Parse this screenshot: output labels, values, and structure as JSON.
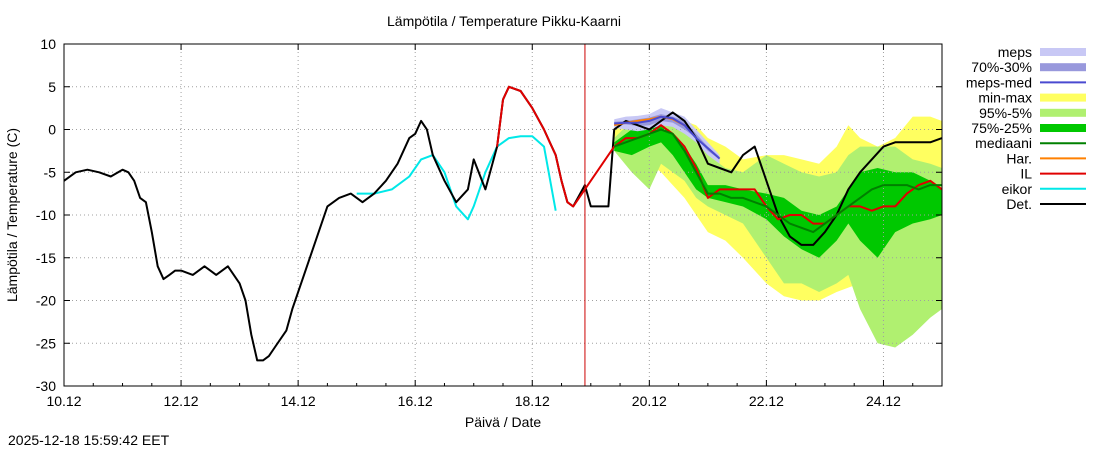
{
  "chart_data": {
    "type": "line",
    "title": "Lämpötila / Temperature   Pikku-Kaarni",
    "xlabel": "Päivä / Date",
    "ylabel": "Lämpötila / Temperature (C)",
    "xlim": [
      0,
      15
    ],
    "ylim": [
      -30,
      10
    ],
    "grid": true,
    "legend_position": "right",
    "now_marker_x": 8.9,
    "x_tick_labels": [
      {
        "x": 0,
        "label": "10.12"
      },
      {
        "x": 2,
        "label": "12.12"
      },
      {
        "x": 4,
        "label": "14.12"
      },
      {
        "x": 6,
        "label": "16.12"
      },
      {
        "x": 8,
        "label": "18.12"
      },
      {
        "x": 10,
        "label": "20.12"
      },
      {
        "x": 12,
        "label": "22.12"
      },
      {
        "x": 14,
        "label": "24.12"
      }
    ],
    "y_ticks": [
      -30,
      -25,
      -20,
      -15,
      -10,
      -5,
      0,
      5,
      10
    ],
    "legend": [
      {
        "label": "meps",
        "kind": "box",
        "color": "#c8c8f5"
      },
      {
        "label": "70%-30%",
        "kind": "box",
        "color": "#9898dc"
      },
      {
        "label": "meps-med",
        "kind": "line",
        "color": "#4a4ad0"
      },
      {
        "label": "min-max",
        "kind": "box",
        "color": "#ffff60"
      },
      {
        "label": "95%-5%",
        "kind": "box",
        "color": "#b0f070"
      },
      {
        "label": "75%-25%",
        "kind": "box",
        "color": "#00c800"
      },
      {
        "label": "mediaani",
        "kind": "line",
        "color": "#008000"
      },
      {
        "label": "Har.",
        "kind": "line",
        "color": "#ff8000"
      },
      {
        "label": "IL",
        "kind": "line",
        "color": "#e00000"
      },
      {
        "label": "eikor",
        "kind": "line",
        "color": "#00e8e8"
      },
      {
        "label": "Det.",
        "kind": "line",
        "color": "#000000"
      }
    ],
    "bands": [
      {
        "name": "min-max",
        "color": "#ffff60",
        "x": [
          9.4,
          9.7,
          10.0,
          10.2,
          10.4,
          10.6,
          10.8,
          11.0,
          11.3,
          11.6,
          12.0,
          12.3,
          12.6,
          12.9,
          13.2,
          13.4,
          13.6,
          13.9,
          14.2,
          14.5,
          14.8,
          15.0
        ],
        "low": [
          -2.0,
          -3.0,
          -4.0,
          -5.0,
          -6.5,
          -8.0,
          -10.0,
          -12.0,
          -13.0,
          -15.0,
          -18.0,
          -19.5,
          -20.0,
          -20.0,
          -19.0,
          -18.5,
          -18.0,
          -20.0,
          -22.0,
          -23.0,
          -22.0,
          -20.0
        ],
        "high": [
          0.0,
          1.5,
          1.5,
          2.0,
          1.5,
          1.0,
          0.5,
          -1.0,
          -2.0,
          -3.5,
          -3.0,
          -3.0,
          -3.5,
          -4.0,
          -2.0,
          0.5,
          -1.0,
          -2.0,
          -1.0,
          1.5,
          1.5,
          1.0
        ]
      },
      {
        "name": "95%-5%",
        "color": "#b0f070",
        "x": [
          9.4,
          9.7,
          10.0,
          10.2,
          10.4,
          10.6,
          10.8,
          11.0,
          11.3,
          11.6,
          12.0,
          12.3,
          12.6,
          12.9,
          13.2,
          13.4,
          13.6,
          13.9,
          14.2,
          14.5,
          14.8,
          15.0
        ],
        "low": [
          -2.5,
          -5.0,
          -7.0,
          -4.0,
          -5.0,
          -6.0,
          -8.0,
          -9.0,
          -10.0,
          -11.0,
          -15.0,
          -18.0,
          -18.0,
          -19.0,
          -18.0,
          -17.0,
          -21.0,
          -25.0,
          -25.5,
          -24.0,
          -22.0,
          -21.0
        ],
        "high": [
          -1.0,
          1.0,
          1.0,
          1.5,
          1.0,
          0.0,
          -1.5,
          -3.0,
          -4.5,
          -5.0,
          -3.0,
          -4.0,
          -5.0,
          -5.5,
          -5.0,
          -3.0,
          -2.0,
          -2.0,
          -2.0,
          -3.5,
          -4.0,
          -4.5
        ]
      },
      {
        "name": "75%-25%",
        "color": "#00c800",
        "x": [
          9.4,
          9.7,
          10.0,
          10.2,
          10.4,
          10.6,
          10.8,
          11.0,
          11.3,
          11.6,
          12.0,
          12.3,
          12.6,
          12.9,
          13.2,
          13.4,
          13.6,
          13.9,
          14.2,
          14.5,
          14.8,
          15.0
        ],
        "low": [
          -2.5,
          -3.0,
          -2.0,
          -1.5,
          -3.0,
          -5.0,
          -7.0,
          -8.0,
          -8.5,
          -9.0,
          -10.5,
          -12.5,
          -14.0,
          -15.0,
          -13.0,
          -11.0,
          -13.0,
          -15.0,
          -12.0,
          -11.0,
          -10.5,
          -10.0
        ],
        "high": [
          -1.5,
          0.0,
          0.5,
          0.5,
          -0.5,
          -2.0,
          -4.0,
          -6.5,
          -6.5,
          -7.0,
          -7.5,
          -8.0,
          -9.5,
          -10.0,
          -9.0,
          -7.0,
          -5.0,
          -4.5,
          -5.0,
          -5.0,
          -6.0,
          -7.0
        ]
      },
      {
        "name": "meps",
        "color": "#c8c8f5",
        "x": [
          9.4,
          9.6,
          9.8,
          10.0,
          10.2,
          10.4,
          10.6,
          10.8,
          11.0,
          11.2
        ],
        "low": [
          0.2,
          0.0,
          -0.2,
          0.0,
          0.5,
          0.3,
          -0.5,
          -1.5,
          -3.0,
          -4.0
        ],
        "high": [
          1.2,
          1.5,
          1.6,
          1.8,
          2.5,
          2.0,
          1.5,
          0.0,
          -1.5,
          -3.0
        ]
      },
      {
        "name": "70%-30%",
        "color": "#9898dc",
        "x": [
          9.4,
          9.6,
          9.8,
          10.0,
          10.2,
          10.4,
          10.6,
          10.8,
          11.0,
          11.2
        ],
        "low": [
          0.5,
          0.6,
          0.4,
          0.5,
          1.0,
          0.8,
          0.0,
          -1.0,
          -2.5,
          -3.5
        ],
        "high": [
          0.9,
          1.0,
          1.2,
          1.4,
          1.8,
          1.5,
          1.0,
          -0.5,
          -2.0,
          -3.2
        ]
      }
    ],
    "series": [
      {
        "name": "eikor",
        "color": "#00e8e8",
        "width": 2,
        "x": [
          5.0,
          5.3,
          5.6,
          5.9,
          6.1,
          6.3,
          6.5,
          6.7,
          6.9,
          7.0,
          7.2,
          7.4,
          7.6,
          7.8,
          8.0,
          8.2,
          8.4
        ],
        "y": [
          -7.5,
          -7.5,
          -7.0,
          -5.5,
          -3.5,
          -3.0,
          -5.0,
          -9.0,
          -10.5,
          -9.0,
          -5.0,
          -2.0,
          -1.0,
          -0.8,
          -0.8,
          -2.0,
          -9.5
        ]
      },
      {
        "name": "Det.",
        "color": "#000000",
        "width": 2,
        "x": [
          0.0,
          0.2,
          0.4,
          0.6,
          0.8,
          1.0,
          1.1,
          1.2,
          1.3,
          1.4,
          1.5,
          1.6,
          1.7,
          1.8,
          1.9,
          2.0,
          2.2,
          2.4,
          2.5,
          2.6,
          2.8,
          3.0,
          3.1,
          3.2,
          3.3,
          3.4,
          3.5,
          3.6,
          3.8,
          3.9,
          4.1,
          4.3,
          4.5,
          4.7,
          4.9,
          5.1,
          5.3,
          5.5,
          5.7,
          5.9,
          6.0,
          6.1,
          6.2,
          6.3,
          6.5,
          6.7,
          6.9,
          7.0,
          7.2,
          7.4,
          7.5,
          7.6,
          7.8,
          8.0,
          8.2,
          8.3,
          8.4,
          8.5,
          8.6,
          8.7,
          8.9,
          9.0,
          9.1,
          9.2,
          9.3,
          9.4,
          9.6,
          9.8,
          10.0,
          10.2,
          10.4,
          10.6,
          10.8,
          11.0,
          11.2,
          11.4,
          11.6,
          11.8,
          12.0,
          12.2,
          12.4,
          12.6,
          12.8,
          13.0,
          13.2,
          13.4,
          13.6,
          13.8,
          14.0,
          14.2,
          14.4,
          14.6,
          14.8,
          15.0
        ],
        "y": [
          -6.0,
          -5.0,
          -4.7,
          -5.0,
          -5.5,
          -4.7,
          -5.0,
          -6.0,
          -8.0,
          -8.5,
          -12.0,
          -16.0,
          -17.5,
          -17.0,
          -16.5,
          -16.5,
          -17.0,
          -16.0,
          -16.5,
          -17.0,
          -16.0,
          -18.0,
          -20.0,
          -24.0,
          -27.0,
          -27.0,
          -26.5,
          -25.5,
          -23.5,
          -21.0,
          -17.0,
          -13.0,
          -9.0,
          -8.0,
          -7.5,
          -8.5,
          -7.5,
          -6.0,
          -4.0,
          -1.0,
          -0.5,
          1.0,
          0.0,
          -3.0,
          -6.0,
          -8.5,
          -7.0,
          -3.5,
          -7.0,
          -2.0,
          3.5,
          5.0,
          4.5,
          2.5,
          0.0,
          -1.5,
          -3.0,
          -6.0,
          -8.5,
          -9.0,
          -6.5,
          -9.0,
          -9.0,
          -9.0,
          -9.0,
          0.0,
          1.0,
          0.5,
          0.0,
          1.0,
          2.0,
          1.0,
          -1.0,
          -4.0,
          -4.5,
          -5.0,
          -3.0,
          -2.0,
          -6.0,
          -10.0,
          -12.5,
          -13.5,
          -13.5,
          -12.0,
          -10.0,
          -7.0,
          -5.0,
          -3.5,
          -2.0,
          -1.5,
          -1.5,
          -1.5,
          -1.5,
          -1.0
        ]
      },
      {
        "name": "IL",
        "color": "#e00000",
        "width": 2,
        "x": [
          7.4,
          7.5,
          7.6,
          7.8,
          8.0,
          8.2,
          8.3,
          8.4,
          8.5,
          8.6,
          8.7,
          9.4,
          9.6,
          9.8,
          10.0,
          10.2,
          10.4,
          10.6,
          10.8,
          11.0,
          11.2,
          11.4,
          11.6,
          11.8,
          12.0,
          12.2,
          12.4,
          12.6,
          12.8,
          13.0,
          13.2,
          13.4,
          13.6,
          13.8,
          14.0,
          14.2,
          14.4,
          14.6,
          14.8,
          15.0
        ],
        "y": [
          -2.0,
          3.5,
          5.0,
          4.5,
          2.5,
          0.0,
          -1.5,
          -3.0,
          -6.0,
          -8.5,
          -9.0,
          -2.0,
          -1.0,
          -1.0,
          -0.5,
          0.5,
          -0.5,
          -2.0,
          -4.5,
          -8.0,
          -7.0,
          -7.0,
          -7.0,
          -7.0,
          -9.0,
          -10.5,
          -10.0,
          -10.0,
          -11.0,
          -11.0,
          -10.0,
          -9.0,
          -9.0,
          -9.5,
          -9.0,
          -9.0,
          -7.5,
          -6.5,
          -6.0,
          -7.0
        ]
      },
      {
        "name": "mediaani",
        "color": "#008000",
        "width": 2,
        "x": [
          9.4,
          9.6,
          9.8,
          10.0,
          10.2,
          10.4,
          10.6,
          10.8,
          11.0,
          11.2,
          11.4,
          11.6,
          11.8,
          12.0,
          12.2,
          12.4,
          12.6,
          12.8,
          13.0,
          13.2,
          13.4,
          13.6,
          13.8,
          14.0,
          14.2,
          14.4,
          14.6,
          14.8,
          15.0
        ],
        "y": [
          -2.0,
          -1.5,
          -1.0,
          -0.5,
          0.0,
          -0.5,
          -2.5,
          -5.0,
          -7.5,
          -7.5,
          -8.0,
          -8.0,
          -8.5,
          -9.0,
          -10.0,
          -11.0,
          -11.5,
          -12.0,
          -11.0,
          -10.0,
          -9.0,
          -8.0,
          -7.0,
          -6.5,
          -6.5,
          -6.5,
          -7.0,
          -6.5,
          -6.5
        ]
      },
      {
        "name": "Har.",
        "color": "#ff8000",
        "width": 2,
        "x": [
          9.4,
          9.6,
          9.8,
          10.0,
          10.2,
          10.4,
          10.6
        ],
        "y": [
          0.5,
          0.8,
          1.0,
          1.2,
          1.5,
          1.2,
          0.5
        ]
      },
      {
        "name": "meps-med",
        "color": "#4a4ad0",
        "width": 2,
        "x": [
          9.4,
          9.6,
          9.8,
          10.0,
          10.2,
          10.4,
          10.6,
          10.8,
          11.0,
          11.2
        ],
        "y": [
          0.7,
          0.8,
          0.8,
          1.0,
          1.5,
          1.3,
          0.5,
          -1.0,
          -2.2,
          -3.4
        ]
      }
    ]
  },
  "timestamp": "2025-12-18 15:59:42 EET"
}
